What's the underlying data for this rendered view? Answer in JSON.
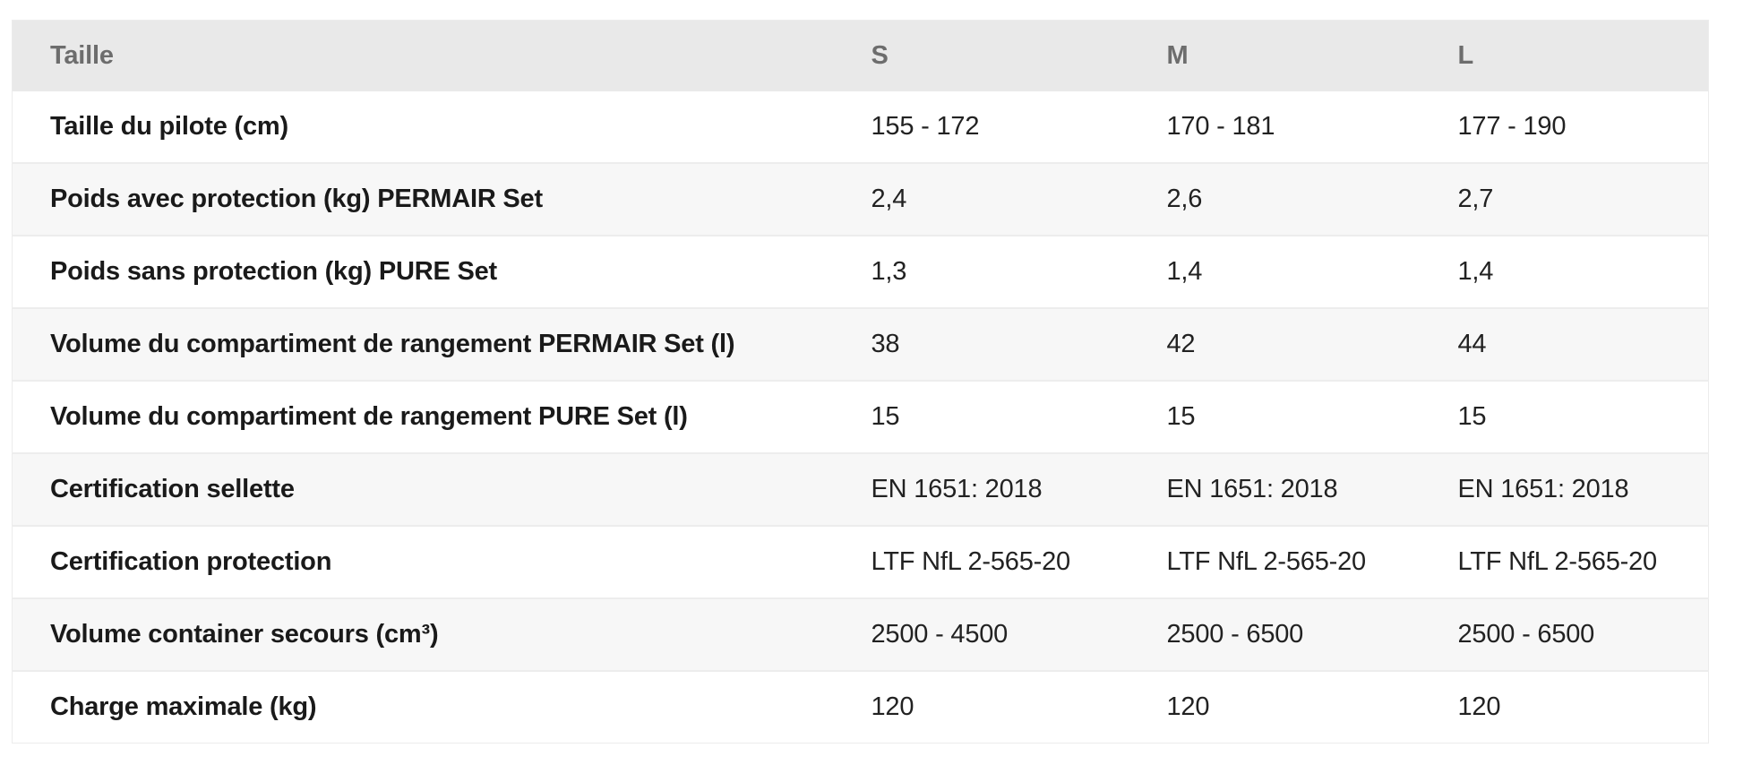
{
  "table": {
    "header": {
      "col0": "Taille",
      "col1": "S",
      "col2": "M",
      "col3": "L"
    },
    "rows": [
      {
        "label": "Taille du pilote (cm)",
        "values": [
          "155 - 172",
          "170 - 181",
          "177 - 190"
        ]
      },
      {
        "label": "Poids avec protection (kg) PERMAIR Set",
        "values": [
          "2,4",
          "2,6",
          "2,7"
        ]
      },
      {
        "label": "Poids sans protection (kg) PURE Set",
        "values": [
          "1,3",
          "1,4",
          "1,4"
        ]
      },
      {
        "label": "Volume du compartiment de rangement PERMAIR Set (l)",
        "values": [
          "38",
          "42",
          "44"
        ]
      },
      {
        "label": "Volume du compartiment de rangement PURE Set (l)",
        "values": [
          "15",
          "15",
          "15"
        ]
      },
      {
        "label": "Certification sellette",
        "values": [
          "EN 1651: 2018",
          "EN 1651: 2018",
          "EN 1651: 2018"
        ]
      },
      {
        "label": "Certification protection",
        "values": [
          "LTF NfL 2-565-20",
          "LTF NfL 2-565-20",
          "LTF NfL 2-565-20"
        ]
      },
      {
        "label": "Volume container secours (cm³)",
        "values": [
          "2500 - 4500",
          "2500 - 6500",
          "2500 - 6500"
        ]
      },
      {
        "label": "Charge maximale (kg)",
        "values": [
          "120",
          "120",
          "120"
        ]
      }
    ],
    "colors": {
      "header_bg": "#e9e9e9",
      "header_text": "#6d6d6d",
      "row_bg": "#ffffff",
      "row_alt_bg": "#f7f7f7",
      "label_text": "#1a1a1a",
      "value_text": "#222222",
      "border": "#ededed"
    }
  },
  "chart_data": {
    "type": "table",
    "columns": [
      "Taille",
      "S",
      "M",
      "L"
    ],
    "rows": [
      [
        "Taille du pilote (cm)",
        "155 - 172",
        "170 - 181",
        "177 - 190"
      ],
      [
        "Poids avec protection (kg) PERMAIR Set",
        "2,4",
        "2,6",
        "2,7"
      ],
      [
        "Poids sans protection (kg) PURE Set",
        "1,3",
        "1,4",
        "1,4"
      ],
      [
        "Volume du compartiment de rangement PERMAIR Set (l)",
        "38",
        "42",
        "44"
      ],
      [
        "Volume du compartiment de rangement PURE Set (l)",
        "15",
        "15",
        "15"
      ],
      [
        "Certification sellette",
        "EN 1651: 2018",
        "EN 1651: 2018",
        "EN 1651: 2018"
      ],
      [
        "Certification protection",
        "LTF NfL 2-565-20",
        "LTF NfL 2-565-20",
        "LTF NfL 2-565-20"
      ],
      [
        "Volume container secours (cm³)",
        "2500 - 4500",
        "2500 - 6500",
        "2500 - 6500"
      ],
      [
        "Charge maximale (kg)",
        "120",
        "120",
        "120"
      ]
    ],
    "layout": {
      "header_row": true,
      "zebra_striping": true,
      "legend_position": "none",
      "grid": false
    }
  }
}
